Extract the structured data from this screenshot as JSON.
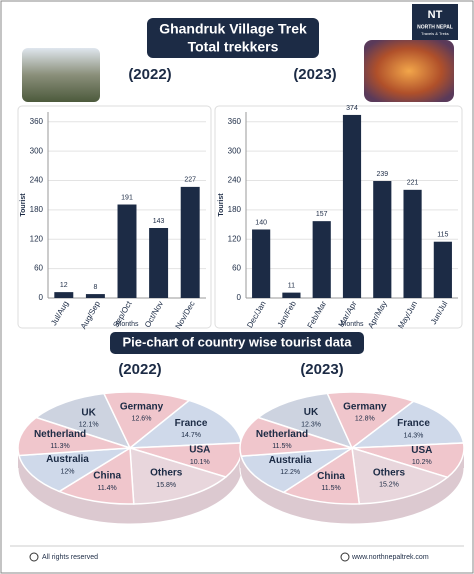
{
  "header": {
    "title": "Ghandruk Village Trek",
    "subtitle": "Total trekkers",
    "logo": "NT",
    "brand": "NORTH NEPAL",
    "brand_sub": "Travels & Treks",
    "pie_section_title": "Pie-chart of country wise tourist data"
  },
  "footer": {
    "rights": "All rights reserved",
    "website": "www.northnepaltrek.com"
  },
  "chart_data": [
    {
      "type": "bar",
      "title": "(2022)",
      "x_label": "Months",
      "y_label": "Tourist",
      "categories": [
        "Jul/Aug",
        "Aug/Sep",
        "Sep/Oct",
        "Oct/Nov",
        "Nov/Dec"
      ],
      "values": [
        12,
        8,
        191,
        143,
        227
      ],
      "color": "#1c2b45",
      "ylim": [
        0,
        380
      ],
      "yticks": [
        0,
        60,
        120,
        180,
        240,
        300,
        360
      ]
    },
    {
      "type": "bar",
      "title": "(2023)",
      "x_label": "Months",
      "y_label": "Tourist",
      "categories": [
        "Dec/Jan",
        "Jan/Feb",
        "Feb/Mar",
        "Mar/Apr",
        "Apr/May",
        "May/Jun",
        "Jun/Jul"
      ],
      "values": [
        140,
        11,
        157,
        374,
        239,
        221,
        115
      ],
      "color": "#1c2b45",
      "ylim": [
        0,
        380
      ],
      "yticks": [
        0,
        60,
        120,
        180,
        240,
        300,
        360
      ]
    },
    {
      "type": "pie",
      "title": "(2022)",
      "categories": [
        "UK",
        "Germany",
        "France",
        "USA",
        "Others",
        "China",
        "Australia",
        "Netherland"
      ],
      "values": [
        12.1,
        12.6,
        14.7,
        10.1,
        15.8,
        11.4,
        12,
        11.3
      ],
      "value_labels": [
        "12.1%",
        "12.6%",
        "14.7%",
        "10.1%",
        "15.8%",
        "11.4%",
        "12%",
        "11.3%"
      ],
      "colors": [
        "#cdd3e0",
        "#f0c6cc",
        "#cfd9ea",
        "#f0c6cc",
        "#e8d6dc",
        "#f0c6cc",
        "#cfd9ea",
        "#f0c6cc"
      ]
    },
    {
      "type": "pie",
      "title": "(2023)",
      "categories": [
        "UK",
        "Germany",
        "France",
        "USA",
        "Others",
        "China",
        "Australia",
        "Netherland"
      ],
      "values": [
        12.3,
        12.8,
        14.3,
        10.2,
        15.2,
        11.5,
        12.2,
        11.5
      ],
      "value_labels": [
        "12.3%",
        "12.8%",
        "14.3%",
        "10.2%",
        "15.2%",
        "11.5%",
        "12.2%",
        "11.5%"
      ],
      "colors": [
        "#cdd3e0",
        "#f0c6cc",
        "#cfd9ea",
        "#f0c6cc",
        "#e8d6dc",
        "#f0c6cc",
        "#cfd9ea",
        "#f0c6cc"
      ]
    }
  ]
}
